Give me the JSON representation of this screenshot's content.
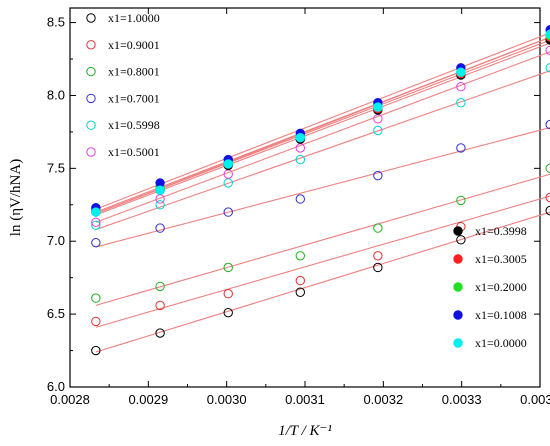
{
  "chart_data": {
    "type": "scatter",
    "xlabel": "1/T / K⁻¹",
    "ylabel": "ln (ηV/hNA)",
    "xlim": [
      0.0028,
      0.0034
    ],
    "ylim": [
      6.0,
      8.6
    ],
    "x_ticks": [
      "0.0028",
      "0.0029",
      "0.0030",
      "0.0031",
      "0.0032",
      "0.0033",
      "0.0034"
    ],
    "y_ticks": [
      "6.0",
      "6.5",
      "7.0",
      "7.5",
      "8.0",
      "8.5"
    ],
    "grid": false,
    "fit_color": "#f08080",
    "x": [
      0.002833,
      0.002915,
      0.003002,
      0.003094,
      0.003193,
      0.003299,
      0.003413
    ],
    "series": [
      {
        "name": "x1=1.0000",
        "marker": "open",
        "color": "#000000",
        "values": [
          6.25,
          6.37,
          6.51,
          6.65,
          6.82,
          7.01,
          7.21
        ],
        "fit": [
          6.24,
          7.2
        ]
      },
      {
        "name": "x1=0.9001",
        "marker": "open",
        "color": "#e03030",
        "values": [
          6.45,
          6.56,
          6.64,
          6.73,
          6.9,
          7.1,
          7.3
        ],
        "fit": [
          6.41,
          7.31
        ]
      },
      {
        "name": "x1=0.8001",
        "marker": "open",
        "color": "#20b020",
        "values": [
          6.61,
          6.69,
          6.82,
          6.9,
          7.09,
          7.28,
          7.5
        ],
        "fit": [
          6.56,
          7.46
        ]
      },
      {
        "name": "x1=0.7001",
        "marker": "open",
        "color": "#3030d0",
        "values": [
          6.99,
          7.09,
          7.2,
          7.29,
          7.45,
          7.64,
          7.8
        ],
        "fit": [
          6.96,
          7.78
        ]
      },
      {
        "name": "x1=0.5998",
        "marker": "open",
        "color": "#00d0d0",
        "values": [
          7.11,
          7.25,
          7.4,
          7.56,
          7.76,
          7.95,
          8.19
        ],
        "fit": [
          7.08,
          8.17
        ]
      },
      {
        "name": "x1=0.5001",
        "marker": "open",
        "color": "#e040e0",
        "values": [
          7.13,
          7.29,
          7.46,
          7.64,
          7.84,
          8.06,
          8.31
        ],
        "fit": [
          7.13,
          8.3
        ]
      },
      {
        "name": "x1=0.3998",
        "marker": "filled",
        "color": "#000000",
        "values": [
          7.21,
          7.35,
          7.52,
          7.7,
          7.9,
          8.14,
          8.38
        ],
        "fit": [
          7.18,
          8.36
        ]
      },
      {
        "name": "x1=0.3005",
        "marker": "filled",
        "color": "#ff2020",
        "values": [
          7.2,
          7.36,
          7.53,
          7.71,
          7.91,
          8.15,
          8.4
        ],
        "fit": [
          7.19,
          8.38
        ]
      },
      {
        "name": "x1=0.2000",
        "marker": "filled",
        "color": "#20e020",
        "values": [
          7.21,
          7.37,
          7.54,
          7.72,
          7.93,
          8.16,
          8.41
        ],
        "fit": [
          7.2,
          8.4
        ]
      },
      {
        "name": "x1=0.1008",
        "marker": "filled",
        "color": "#1010e0",
        "values": [
          7.23,
          7.4,
          7.56,
          7.74,
          7.95,
          8.19,
          8.45
        ],
        "fit": [
          7.22,
          8.43
        ]
      },
      {
        "name": "x1=0.0000",
        "marker": "filled",
        "color": "#00f0f0",
        "values": [
          7.2,
          7.35,
          7.53,
          7.71,
          7.92,
          8.16,
          8.42
        ],
        "fit": [
          7.19,
          8.4
        ]
      }
    ]
  }
}
